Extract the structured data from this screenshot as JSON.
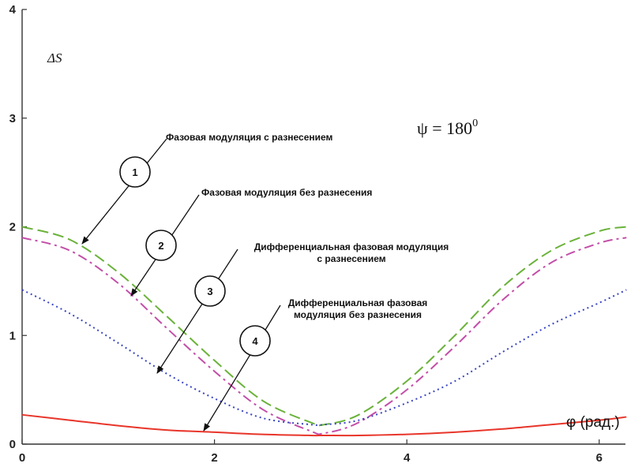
{
  "chart_data": {
    "type": "line",
    "xlabel": "φ (рад.)",
    "ylabel": "ΔS",
    "xlim": [
      0,
      6.283
    ],
    "ylim": [
      0,
      4
    ],
    "xticks": [
      "0",
      "2",
      "4",
      "6"
    ],
    "yticks": [
      "0",
      "1",
      "2",
      "3",
      "4"
    ],
    "annotation": {
      "text": "ψ = 180",
      "sup": "0"
    },
    "series": [
      {
        "name": "Фазовая модуляция с разнесением",
        "marker": "1",
        "color": "#6ab23a",
        "dash": "14 6",
        "x": [
          0,
          0.5,
          1.0,
          1.5,
          2.0,
          2.5,
          3.0,
          3.14,
          3.5,
          4.0,
          4.5,
          5.0,
          5.5,
          6.0,
          6.283
        ],
        "values": [
          2.0,
          1.88,
          1.58,
          1.18,
          0.77,
          0.4,
          0.2,
          0.18,
          0.27,
          0.58,
          1.0,
          1.45,
          1.78,
          1.96,
          2.0
        ]
      },
      {
        "name": "Фазовая модуляция без разнесения",
        "marker": "2",
        "color": "#c34ea8",
        "dash": "12 5 3 5",
        "x": [
          0,
          0.5,
          1.0,
          1.5,
          2.0,
          2.5,
          3.0,
          3.14,
          3.5,
          4.0,
          4.5,
          5.0,
          5.5,
          6.0,
          6.283
        ],
        "values": [
          1.9,
          1.78,
          1.48,
          1.07,
          0.67,
          0.32,
          0.12,
          0.1,
          0.2,
          0.5,
          0.9,
          1.33,
          1.67,
          1.85,
          1.9
        ]
      },
      {
        "name": "Дифференциальная фазовая модуляция\nс разнесением",
        "marker": "3",
        "color": "#3a46c2",
        "dash": "2 4",
        "x": [
          0,
          0.5,
          1.0,
          1.5,
          2.0,
          2.5,
          3.0,
          3.14,
          3.5,
          4.0,
          4.5,
          5.0,
          5.5,
          6.0,
          6.283
        ],
        "values": [
          1.42,
          1.2,
          0.93,
          0.65,
          0.42,
          0.24,
          0.18,
          0.18,
          0.22,
          0.38,
          0.58,
          0.85,
          1.1,
          1.3,
          1.42
        ]
      },
      {
        "name": "Дифференциальная фазовая\nмодуляция без разнесения",
        "marker": "4",
        "color": "#e8352a",
        "dash": "",
        "x": [
          0,
          0.5,
          1.0,
          1.5,
          2.0,
          2.5,
          3.0,
          3.14,
          3.5,
          4.0,
          4.5,
          5.0,
          5.5,
          6.0,
          6.283
        ],
        "values": [
          0.27,
          0.22,
          0.17,
          0.13,
          0.11,
          0.09,
          0.08,
          0.08,
          0.08,
          0.09,
          0.11,
          0.14,
          0.18,
          0.22,
          0.25
        ]
      }
    ]
  }
}
